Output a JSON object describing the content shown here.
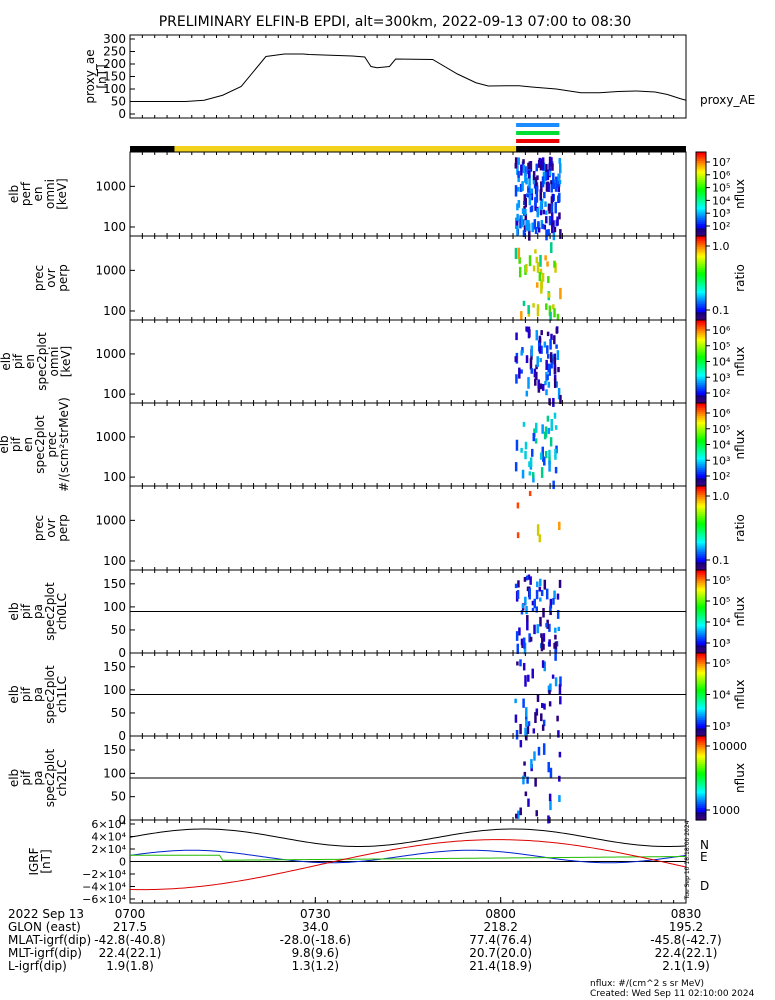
{
  "title": "PRELIMINARY ELFIN-B EPDI, alt=300km, 2022-09-13 07:00 to 08:30",
  "time_axis": {
    "start": "07:00",
    "end": "08:30",
    "major_ticks": [
      "0700",
      "0730",
      "0800",
      "0830"
    ]
  },
  "chart_data": [
    {
      "type": "line",
      "name": "proxy_ae",
      "ylabel_lines": [
        "proxy_ae",
        "[nT]"
      ],
      "series_label": "proxy_AE",
      "ylim": [
        0,
        300
      ],
      "yticks": [
        "0",
        "50",
        "100",
        "150",
        "200",
        "250",
        "300"
      ],
      "x_minutes": [
        0,
        9,
        12,
        15,
        18,
        22,
        25,
        28,
        29,
        36,
        38,
        39,
        40,
        42,
        43,
        49,
        53,
        56,
        58,
        61,
        63,
        65,
        69,
        73,
        76,
        79,
        82,
        85,
        87,
        89,
        90
      ],
      "values": [
        50,
        50,
        55,
        75,
        110,
        230,
        240,
        240,
        238,
        232,
        228,
        190,
        185,
        190,
        220,
        218,
        160,
        125,
        112,
        113,
        113,
        108,
        100,
        85,
        85,
        90,
        92,
        88,
        78,
        62,
        55
      ]
    },
    {
      "type": "bar",
      "name": "science-zone-bars",
      "colors": [
        "#1a8cff",
        "#00dd33",
        "#ee0000"
      ],
      "x_range_minutes": [
        62.5,
        69.5
      ]
    },
    {
      "type": "bar",
      "name": "ephemeris-strip",
      "segments": [
        {
          "start_min": 0,
          "end_min": 7.2,
          "color": "#000000"
        },
        {
          "start_min": 7.2,
          "end_min": 62.5,
          "color": "#f2d21c"
        },
        {
          "start_min": 62.5,
          "end_min": 90,
          "color": "#000000"
        }
      ]
    },
    {
      "type": "heatmap",
      "name": "elb-perp-omni",
      "ylabel_lines": [
        "elb",
        "perf",
        "en",
        "omni",
        "[keV]"
      ],
      "scale": "log",
      "ylim": [
        60,
        7000
      ],
      "yticks": [
        "100",
        "1000"
      ],
      "colorbar": {
        "label": "nflux",
        "ticks": [
          "10⁷",
          "10⁶",
          "10⁵",
          "10⁴",
          "10³",
          "10²"
        ]
      }
    },
    {
      "type": "heatmap",
      "name": "prec-ovr-perp",
      "ylabel_lines": [
        "prec",
        "ovr",
        "perp"
      ],
      "scale": "log",
      "ylim": [
        60,
        7000
      ],
      "yticks": [
        "100",
        "1000"
      ],
      "colorbar": {
        "label": "ratio",
        "ticks": [
          "1.0",
          "0.1"
        ]
      }
    },
    {
      "type": "heatmap",
      "name": "elb-pif-omni",
      "ylabel_lines": [
        "elb",
        "pif",
        "en",
        "spec2plot",
        "omni",
        "[keV]"
      ],
      "scale": "log",
      "ylim": [
        60,
        7000
      ],
      "yticks": [
        "100",
        "1000"
      ],
      "colorbar": {
        "label": "nflux",
        "ticks": [
          "10⁶",
          "10⁵",
          "10⁴",
          "10³",
          "10²"
        ]
      }
    },
    {
      "type": "heatmap",
      "name": "elb-pif-prec",
      "ylabel_lines": [
        "elb",
        "pif",
        "en",
        "spec2plot",
        "prec",
        "#/(scm²strMeV)"
      ],
      "scale": "log",
      "ylim": [
        60,
        7000
      ],
      "yticks": [
        "100",
        "1000"
      ],
      "colorbar": {
        "label": "nflux",
        "ticks": [
          "10⁶",
          "10⁵",
          "10⁴",
          "10³",
          "10²"
        ]
      }
    },
    {
      "type": "heatmap",
      "name": "prec-ovr-perp-2",
      "ylabel_lines": [
        "prec",
        "ovr",
        "perp"
      ],
      "scale": "log",
      "ylim": [
        60,
        7000
      ],
      "yticks": [
        "100",
        "1000"
      ],
      "colorbar": {
        "label": "ratio",
        "ticks": [
          "1.0",
          "0.1"
        ]
      }
    },
    {
      "type": "heatmap",
      "name": "pa-ch0lc",
      "ylabel_lines": [
        "elb",
        "pif",
        "pa",
        "spec2plot",
        "ch0LC"
      ],
      "ylim": [
        0,
        180
      ],
      "yticks": [
        "0",
        "50",
        "100",
        "150"
      ],
      "colorbar": {
        "label": "nflux",
        "ticks": [
          "10⁵",
          "10⁵",
          "10⁴",
          "10³"
        ]
      }
    },
    {
      "type": "heatmap",
      "name": "pa-ch1lc",
      "ylabel_lines": [
        "elb",
        "pif",
        "pa",
        "spec2plot",
        "ch1LC"
      ],
      "ylim": [
        0,
        180
      ],
      "yticks": [
        "0",
        "50",
        "100",
        "150"
      ],
      "colorbar": {
        "label": "nflux",
        "ticks": [
          "10⁵",
          "10⁴",
          "10³"
        ]
      }
    },
    {
      "type": "heatmap",
      "name": "pa-ch2lc",
      "ylabel_lines": [
        "elb",
        "pif",
        "pa",
        "spec2plot",
        "ch2LC"
      ],
      "ylim": [
        0,
        180
      ],
      "yticks": [
        "0",
        "50",
        "100",
        "150"
      ],
      "colorbar": {
        "label": "nflux",
        "ticks": [
          "10000",
          "1000"
        ]
      }
    },
    {
      "type": "line",
      "name": "igrf",
      "ylabel_lines": [
        "IGRF",
        "[nT]"
      ],
      "ylim": [
        -60000,
        60000
      ],
      "yticks": [
        "6×10⁴",
        "4×10⁴",
        "2×10⁴",
        "0",
        "−2×10⁴",
        "−4×10⁴",
        "−6×10⁴"
      ],
      "series": [
        {
          "name": "N",
          "color": "#0022cc"
        },
        {
          "name": "E",
          "color": "#22bb00"
        },
        {
          "name": "D",
          "color": "#dd0000"
        }
      ]
    }
  ],
  "side_note": "Tue Sep 10 18:18:00 2024",
  "ephemeris": {
    "date_label": "2022 Sep 13",
    "rows": [
      {
        "label": "GLON (east)",
        "values": [
          "217.5",
          "34.0",
          "218.2",
          "195.2"
        ]
      },
      {
        "label": "MLAT-igrf(dip)",
        "values": [
          "-42.8(-40.8)",
          "-28.0(-18.6)",
          "77.4(76.4)",
          "-45.8(-42.7)"
        ]
      },
      {
        "label": "MLT-igrf(dip)",
        "values": [
          "22.4(22.1)",
          "9.8(9.6)",
          "20.7(20.0)",
          "22.4(22.1)"
        ]
      },
      {
        "label": "L-igrf(dip)",
        "values": [
          "1.9(1.8)",
          "1.3(1.2)",
          "21.4(18.9)",
          "2.1(1.9)"
        ]
      }
    ]
  },
  "footer": {
    "units_note": "nflux: #/(cm^2 s sr MeV)",
    "created": "Created: Wed Sep 11 02:10:00 2024"
  }
}
